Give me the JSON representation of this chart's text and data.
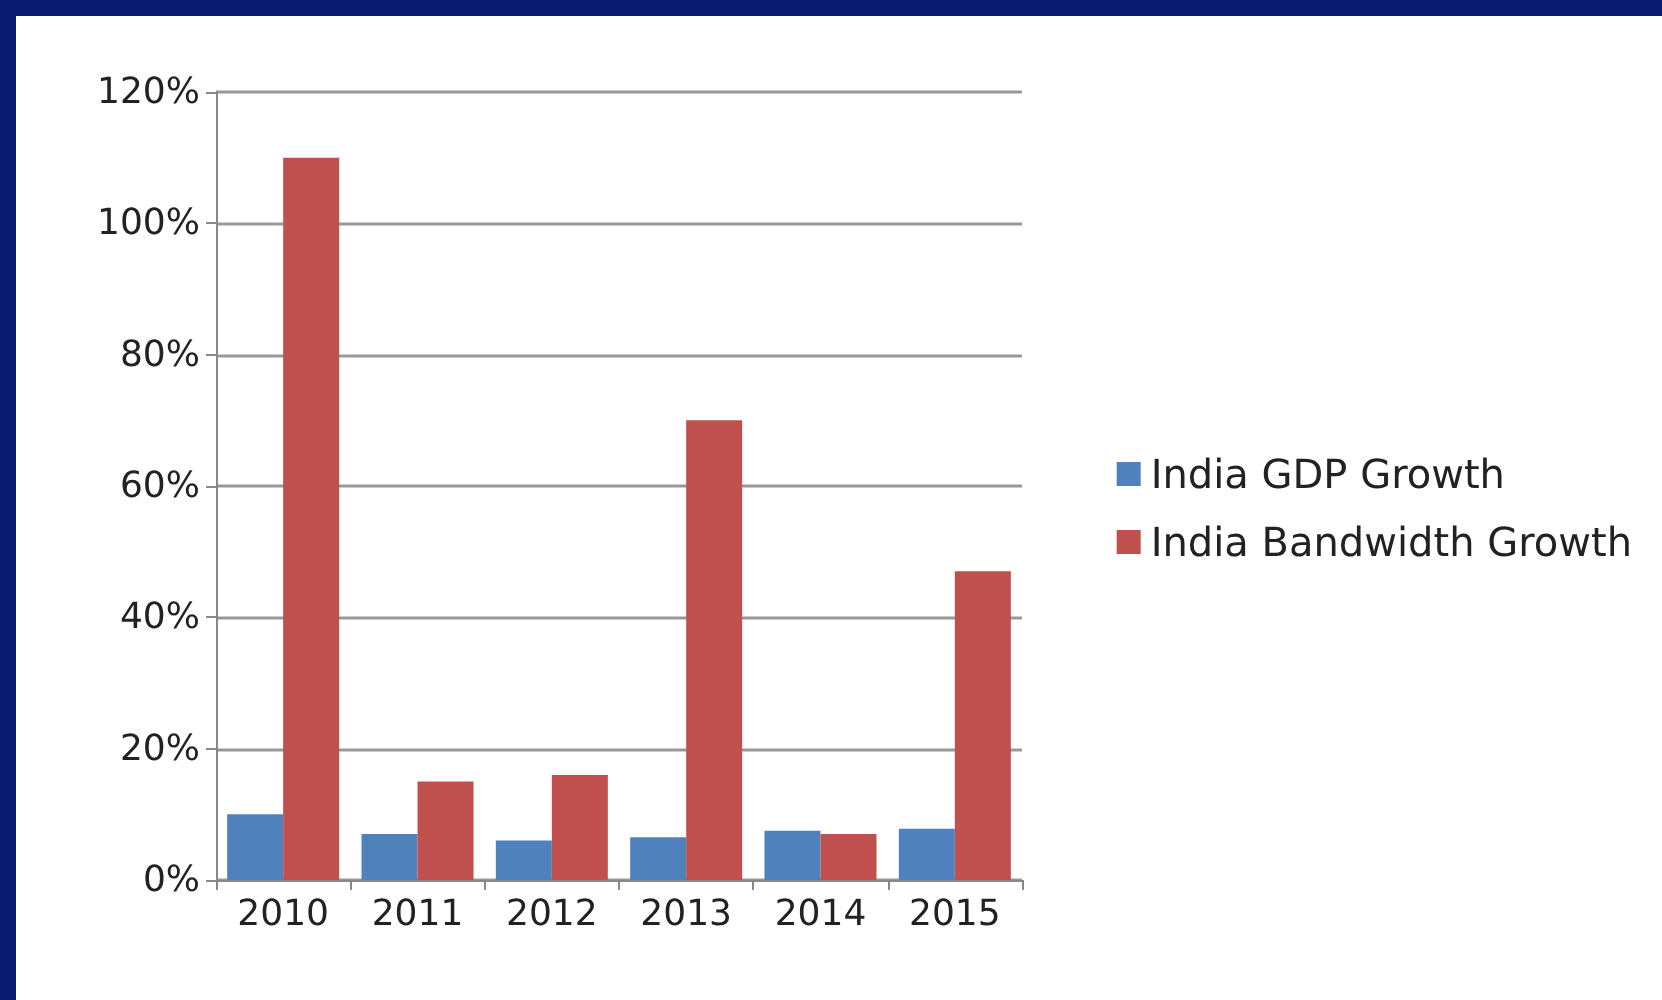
{
  "chart_data": {
    "type": "bar",
    "categories": [
      "2010",
      "2011",
      "2012",
      "2013",
      "2014",
      "2015"
    ],
    "series": [
      {
        "name": "India GDP Growth",
        "color": "#4f81bd",
        "values": [
          10,
          7,
          6,
          6.5,
          7.5,
          7.8
        ]
      },
      {
        "name": "India Bandwidth Growth",
        "color": "#c0504d",
        "values": [
          110,
          15,
          16,
          70,
          7,
          47
        ]
      }
    ],
    "ylim": [
      0,
      120
    ],
    "yticks": [
      {
        "value": 0,
        "label": "0%"
      },
      {
        "value": 20,
        "label": "20%"
      },
      {
        "value": 40,
        "label": "40%"
      },
      {
        "value": 60,
        "label": "60%"
      },
      {
        "value": 80,
        "label": "80%"
      },
      {
        "value": 100,
        "label": "100%"
      },
      {
        "value": 120,
        "label": "120%"
      }
    ],
    "grid": "y",
    "legend": "right"
  }
}
